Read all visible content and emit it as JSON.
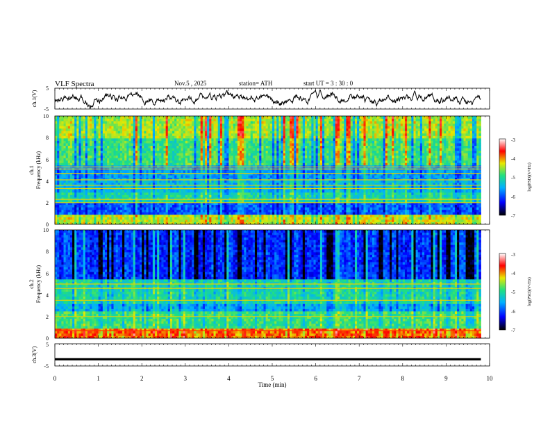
{
  "header": {
    "title": "VLF  Spectra",
    "date": "Nov.5  , 2025",
    "station": "station= ATH",
    "start": "start  UT  =   3  : 30 : 0"
  },
  "chart_data": [
    {
      "id": "ch1-waveform",
      "type": "line",
      "ylabel": "ch.1(V)",
      "ylim": [
        -5,
        5
      ],
      "y_ticks": [
        "5",
        "-5"
      ],
      "xlim": [
        0,
        10
      ],
      "series": [
        {
          "name": "ch.1 voltage",
          "description": "dense noisy signal oscillating roughly between -3 and 3 V"
        }
      ]
    },
    {
      "id": "ch1-spectrogram",
      "type": "heatmap",
      "ylabel": "ch.1\nFrequency  (kHz)",
      "ylabel_lines": [
        "ch.1",
        "Frequency  (kHz)"
      ],
      "ylim": [
        0,
        10
      ],
      "y_ticks": [
        "0",
        "2",
        "4",
        "6",
        "8",
        "10"
      ],
      "xlim": [
        0,
        9.8
      ],
      "colorbar": {
        "label": "log(PSD)(V²/Hz)",
        "range": [
          -7,
          -3
        ],
        "ticks": [
          "-3",
          "-4",
          "-5",
          "-6",
          "-7"
        ]
      },
      "bands": [
        {
          "from_khz": 0.0,
          "to_khz": 1.0,
          "level": -4.4
        },
        {
          "from_khz": 1.0,
          "to_khz": 2.0,
          "level": -5.9
        },
        {
          "from_khz": 2.0,
          "to_khz": 3.0,
          "level": -5.1
        },
        {
          "from_khz": 3.0,
          "to_khz": 4.0,
          "level": -5.4
        },
        {
          "from_khz": 4.0,
          "to_khz": 5.5,
          "level": -5.6
        },
        {
          "from_khz": 5.5,
          "to_khz": 8.0,
          "level": -4.9
        },
        {
          "from_khz": 8.0,
          "to_khz": 10.0,
          "level": -4.5
        }
      ],
      "tone_lines_khz": [
        2.0,
        2.3,
        3.3,
        3.6,
        4.1,
        4.7,
        5.1,
        5.3
      ]
    },
    {
      "id": "ch2-spectrogram",
      "type": "heatmap",
      "ylabel": "ch.2\nFrequency  (kHz)",
      "ylabel_lines": [
        "ch.2",
        "Frequency  (kHz)"
      ],
      "ylim": [
        0,
        10
      ],
      "y_ticks": [
        "0",
        "2",
        "4",
        "6",
        "8",
        "10"
      ],
      "xlim": [
        0,
        9.8
      ],
      "colorbar": {
        "label": "log(PSD)(V²/Hz)",
        "range": [
          -7,
          -3
        ],
        "ticks": [
          "-3",
          "-4",
          "-5",
          "-6",
          "-7"
        ]
      },
      "bands": [
        {
          "from_khz": 0.0,
          "to_khz": 0.9,
          "level": -3.9
        },
        {
          "from_khz": 0.9,
          "to_khz": 2.5,
          "level": -4.9
        },
        {
          "from_khz": 2.5,
          "to_khz": 3.2,
          "level": -5.5
        },
        {
          "from_khz": 3.2,
          "to_khz": 5.5,
          "level": -5.1
        },
        {
          "from_khz": 5.5,
          "to_khz": 10.0,
          "level": -6.1
        }
      ],
      "tone_lines_khz": [
        0.7,
        2.0,
        3.5,
        4.6,
        5.0
      ]
    },
    {
      "id": "ch3-waveform",
      "type": "line",
      "ylabel": "ch.3(V)",
      "ylim": [
        -5,
        5
      ],
      "y_ticks": [
        "5",
        "-5"
      ],
      "xlim": [
        0,
        10
      ],
      "series": [
        {
          "name": "ch.3 voltage",
          "description": "nearly flat thick trace at about -2 V"
        }
      ],
      "level_v": -2
    }
  ],
  "x_axis": {
    "label": "Time  (min)",
    "ticks": [
      "0",
      "1",
      "2",
      "3",
      "4",
      "5",
      "6",
      "7",
      "8",
      "9",
      "10"
    ]
  },
  "colors": {
    "scale": [
      "#000000",
      "#0000ff",
      "#00b0ff",
      "#20e080",
      "#e8e800",
      "#ff0000",
      "#ffffff"
    ]
  }
}
